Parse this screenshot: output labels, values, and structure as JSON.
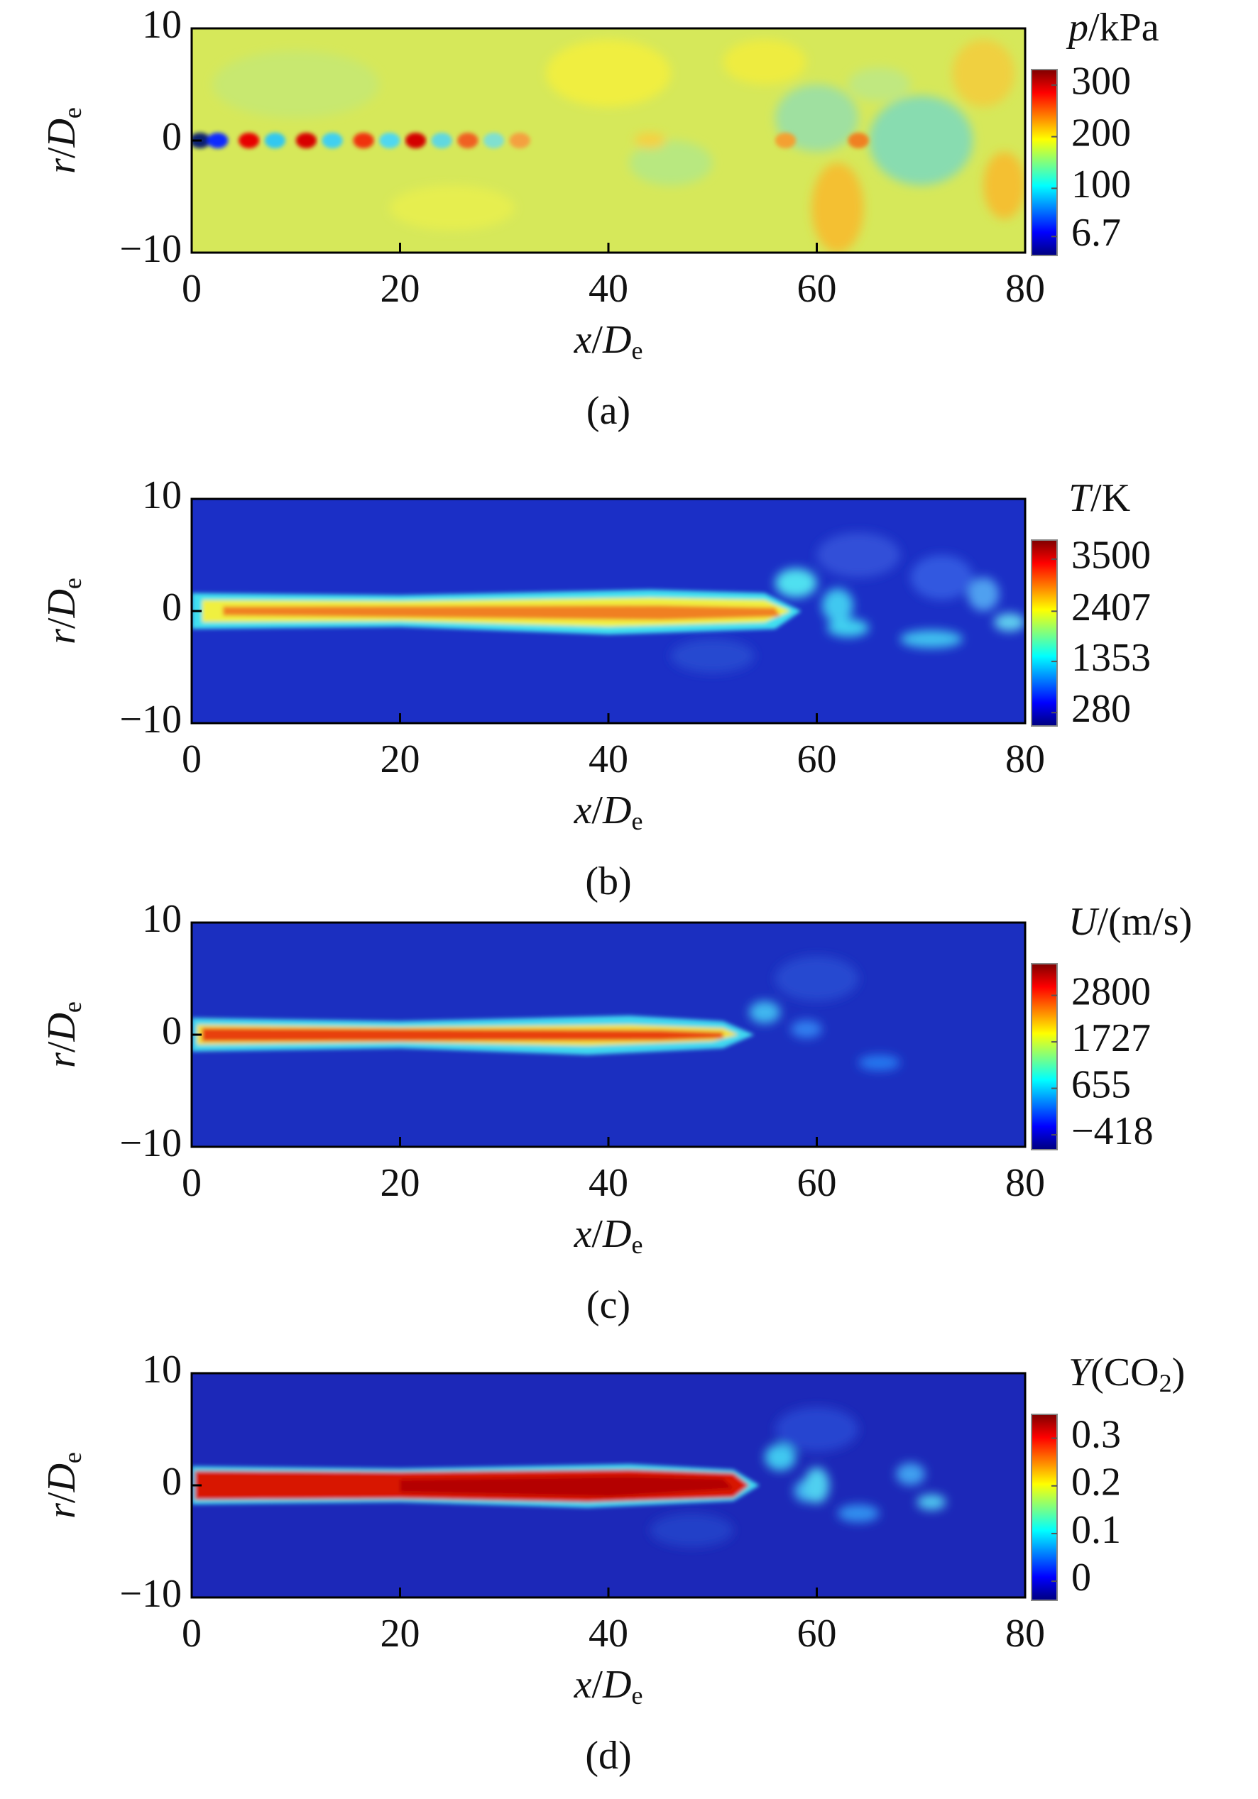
{
  "chart_data": [
    {
      "type": "contour",
      "caption": "(a)",
      "xlabel": [
        "x",
        "/",
        "D",
        "e"
      ],
      "ylabel": [
        "r",
        "/",
        "D",
        "e"
      ],
      "xlim": [
        0,
        80
      ],
      "xticks": [
        0,
        20,
        40,
        60,
        80
      ],
      "ylim": [
        -10,
        10
      ],
      "yticks": [
        {
          "value": -10,
          "label": "−10"
        },
        0,
        10
      ],
      "colorbar": {
        "title": [
          "p",
          "/kPa"
        ],
        "lim": [
          -30,
          330
        ],
        "ticks": [
          300,
          200,
          100,
          6.7
        ]
      },
      "colormap": [
        "#00007f",
        "#0000ff",
        "#007fff",
        "#00ffff",
        "#7fff7f",
        "#ffff00",
        "#ff7f00",
        "#ff0000",
        "#7f0000"
      ]
    },
    {
      "type": "contour",
      "caption": "(b)",
      "xlabel": [
        "x",
        "/",
        "D",
        "e"
      ],
      "ylabel": [
        "r",
        "/",
        "D",
        "e"
      ],
      "xlim": [
        0,
        80
      ],
      "xticks": [
        0,
        20,
        40,
        60,
        80
      ],
      "ylim": [
        -10,
        10
      ],
      "yticks": [
        {
          "value": -10,
          "label": "−10"
        },
        0,
        10
      ],
      "colorbar": {
        "title": [
          "T",
          "/K"
        ],
        "lim": [
          0,
          3900
        ],
        "ticks": [
          3500,
          2407,
          1353,
          280
        ]
      },
      "colormap": [
        "#00007f",
        "#0000ff",
        "#007fff",
        "#00ffff",
        "#7fff7f",
        "#ffff00",
        "#ff7f00",
        "#ff0000",
        "#7f0000"
      ]
    },
    {
      "type": "contour",
      "caption": "(c)",
      "xlabel": [
        "x",
        "/",
        "D",
        "e"
      ],
      "ylabel": [
        "r",
        "/",
        "D",
        "e"
      ],
      "xlim": [
        0,
        80
      ],
      "xticks": [
        0,
        20,
        40,
        60,
        80
      ],
      "ylim": [
        -10,
        10
      ],
      "yticks": [
        {
          "value": -10,
          "label": "−10"
        },
        0,
        10
      ],
      "colorbar": {
        "title": [
          "U",
          "/(m/s)"
        ],
        "lim": [
          -760,
          3530
        ],
        "ticks": [
          2800,
          1727,
          655,
          {
            "value": -418,
            "label": "−418"
          }
        ]
      },
      "colormap": [
        "#00007f",
        "#0000ff",
        "#007fff",
        "#00ffff",
        "#7fff7f",
        "#ffff00",
        "#ff7f00",
        "#ff0000",
        "#7f0000"
      ]
    },
    {
      "type": "contour",
      "caption": "(d)",
      "xlabel": [
        "x",
        "/",
        "D",
        "e"
      ],
      "ylabel": [
        "r",
        "/",
        "D",
        "e"
      ],
      "xlim": [
        0,
        80
      ],
      "xticks": [
        0,
        20,
        40,
        60,
        80
      ],
      "ylim": [
        -10,
        10
      ],
      "yticks": [
        {
          "value": -10,
          "label": "−10"
        },
        0,
        10
      ],
      "colorbar": {
        "title": [
          "Y",
          "(CO",
          "2",
          ")"
        ],
        "lim": [
          -0.04,
          0.35
        ],
        "ticks": [
          0.3,
          0.2,
          0.1,
          0
        ]
      },
      "colormap": [
        "#00007f",
        "#0000ff",
        "#007fff",
        "#00ffff",
        "#7fff7f",
        "#ffff00",
        "#ff7f00",
        "#ff0000",
        "#7f0000"
      ]
    }
  ]
}
